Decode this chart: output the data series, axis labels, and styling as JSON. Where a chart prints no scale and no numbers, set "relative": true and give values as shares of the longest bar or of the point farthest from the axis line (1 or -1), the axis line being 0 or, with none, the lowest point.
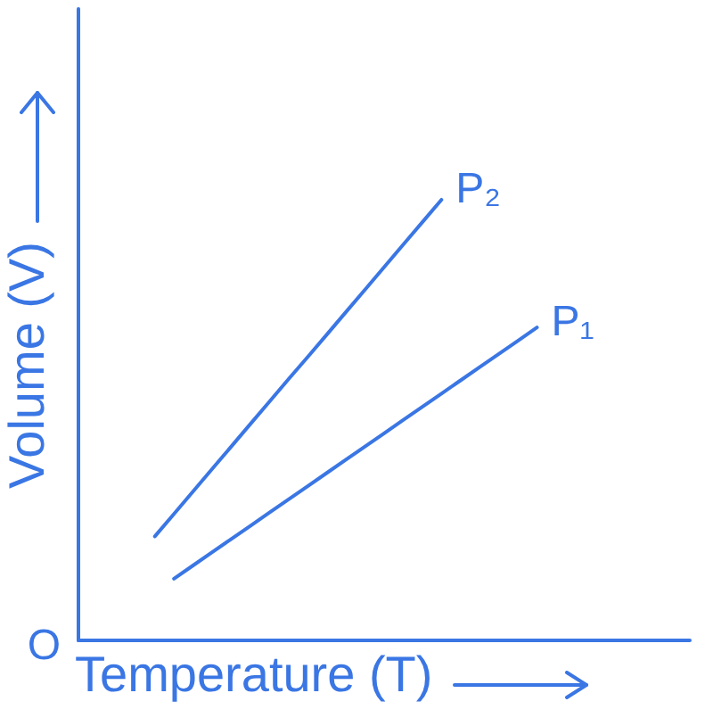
{
  "chart_data": {
    "type": "line",
    "xlabel": "Temperature (T)",
    "ylabel": "Volume (V)",
    "relative": true,
    "categories": [
      null,
      null,
      null,
      null,
      null,
      null,
      null,
      null,
      null,
      null,
      null,
      null,
      null,
      null,
      null,
      null,
      null,
      null,
      null,
      null,
      null,
      null,
      null,
      null,
      null,
      null,
      null,
      null,
      null,
      null,
      null,
      null,
      null
    ],
    "series": [
      {
        "name": "P₂",
        "color": "#3a76e4",
        "values": [
          null,
          null,
          null,
          null,
          0.236,
          0.287,
          0.338,
          0.389,
          0.44,
          0.491,
          0.542,
          0.593,
          0.643,
          0.694,
          0.745,
          0.796,
          0.847,
          0.898,
          0.949,
          1,
          null,
          null,
          null,
          null,
          null,
          null,
          null,
          null,
          null,
          null,
          null,
          null,
          null
        ]
      },
      {
        "name": "P₁",
        "color": "#3a76e4",
        "values": [
          null,
          null,
          null,
          null,
          null,
          0.14,
          0.17,
          0.2,
          0.23,
          0.26,
          0.29,
          0.32,
          0.35,
          0.38,
          0.41,
          0.44,
          0.47,
          0.5,
          0.53,
          0.56,
          0.59,
          0.62,
          0.65,
          0.68,
          0.71,
          null,
          null,
          null,
          null,
          null,
          null,
          null,
          null
        ]
      }
    ],
    "annotations": [
      "O"
    ],
    "grid": false,
    "legend": false,
    "marker": "none",
    "line_style": "solid"
  }
}
